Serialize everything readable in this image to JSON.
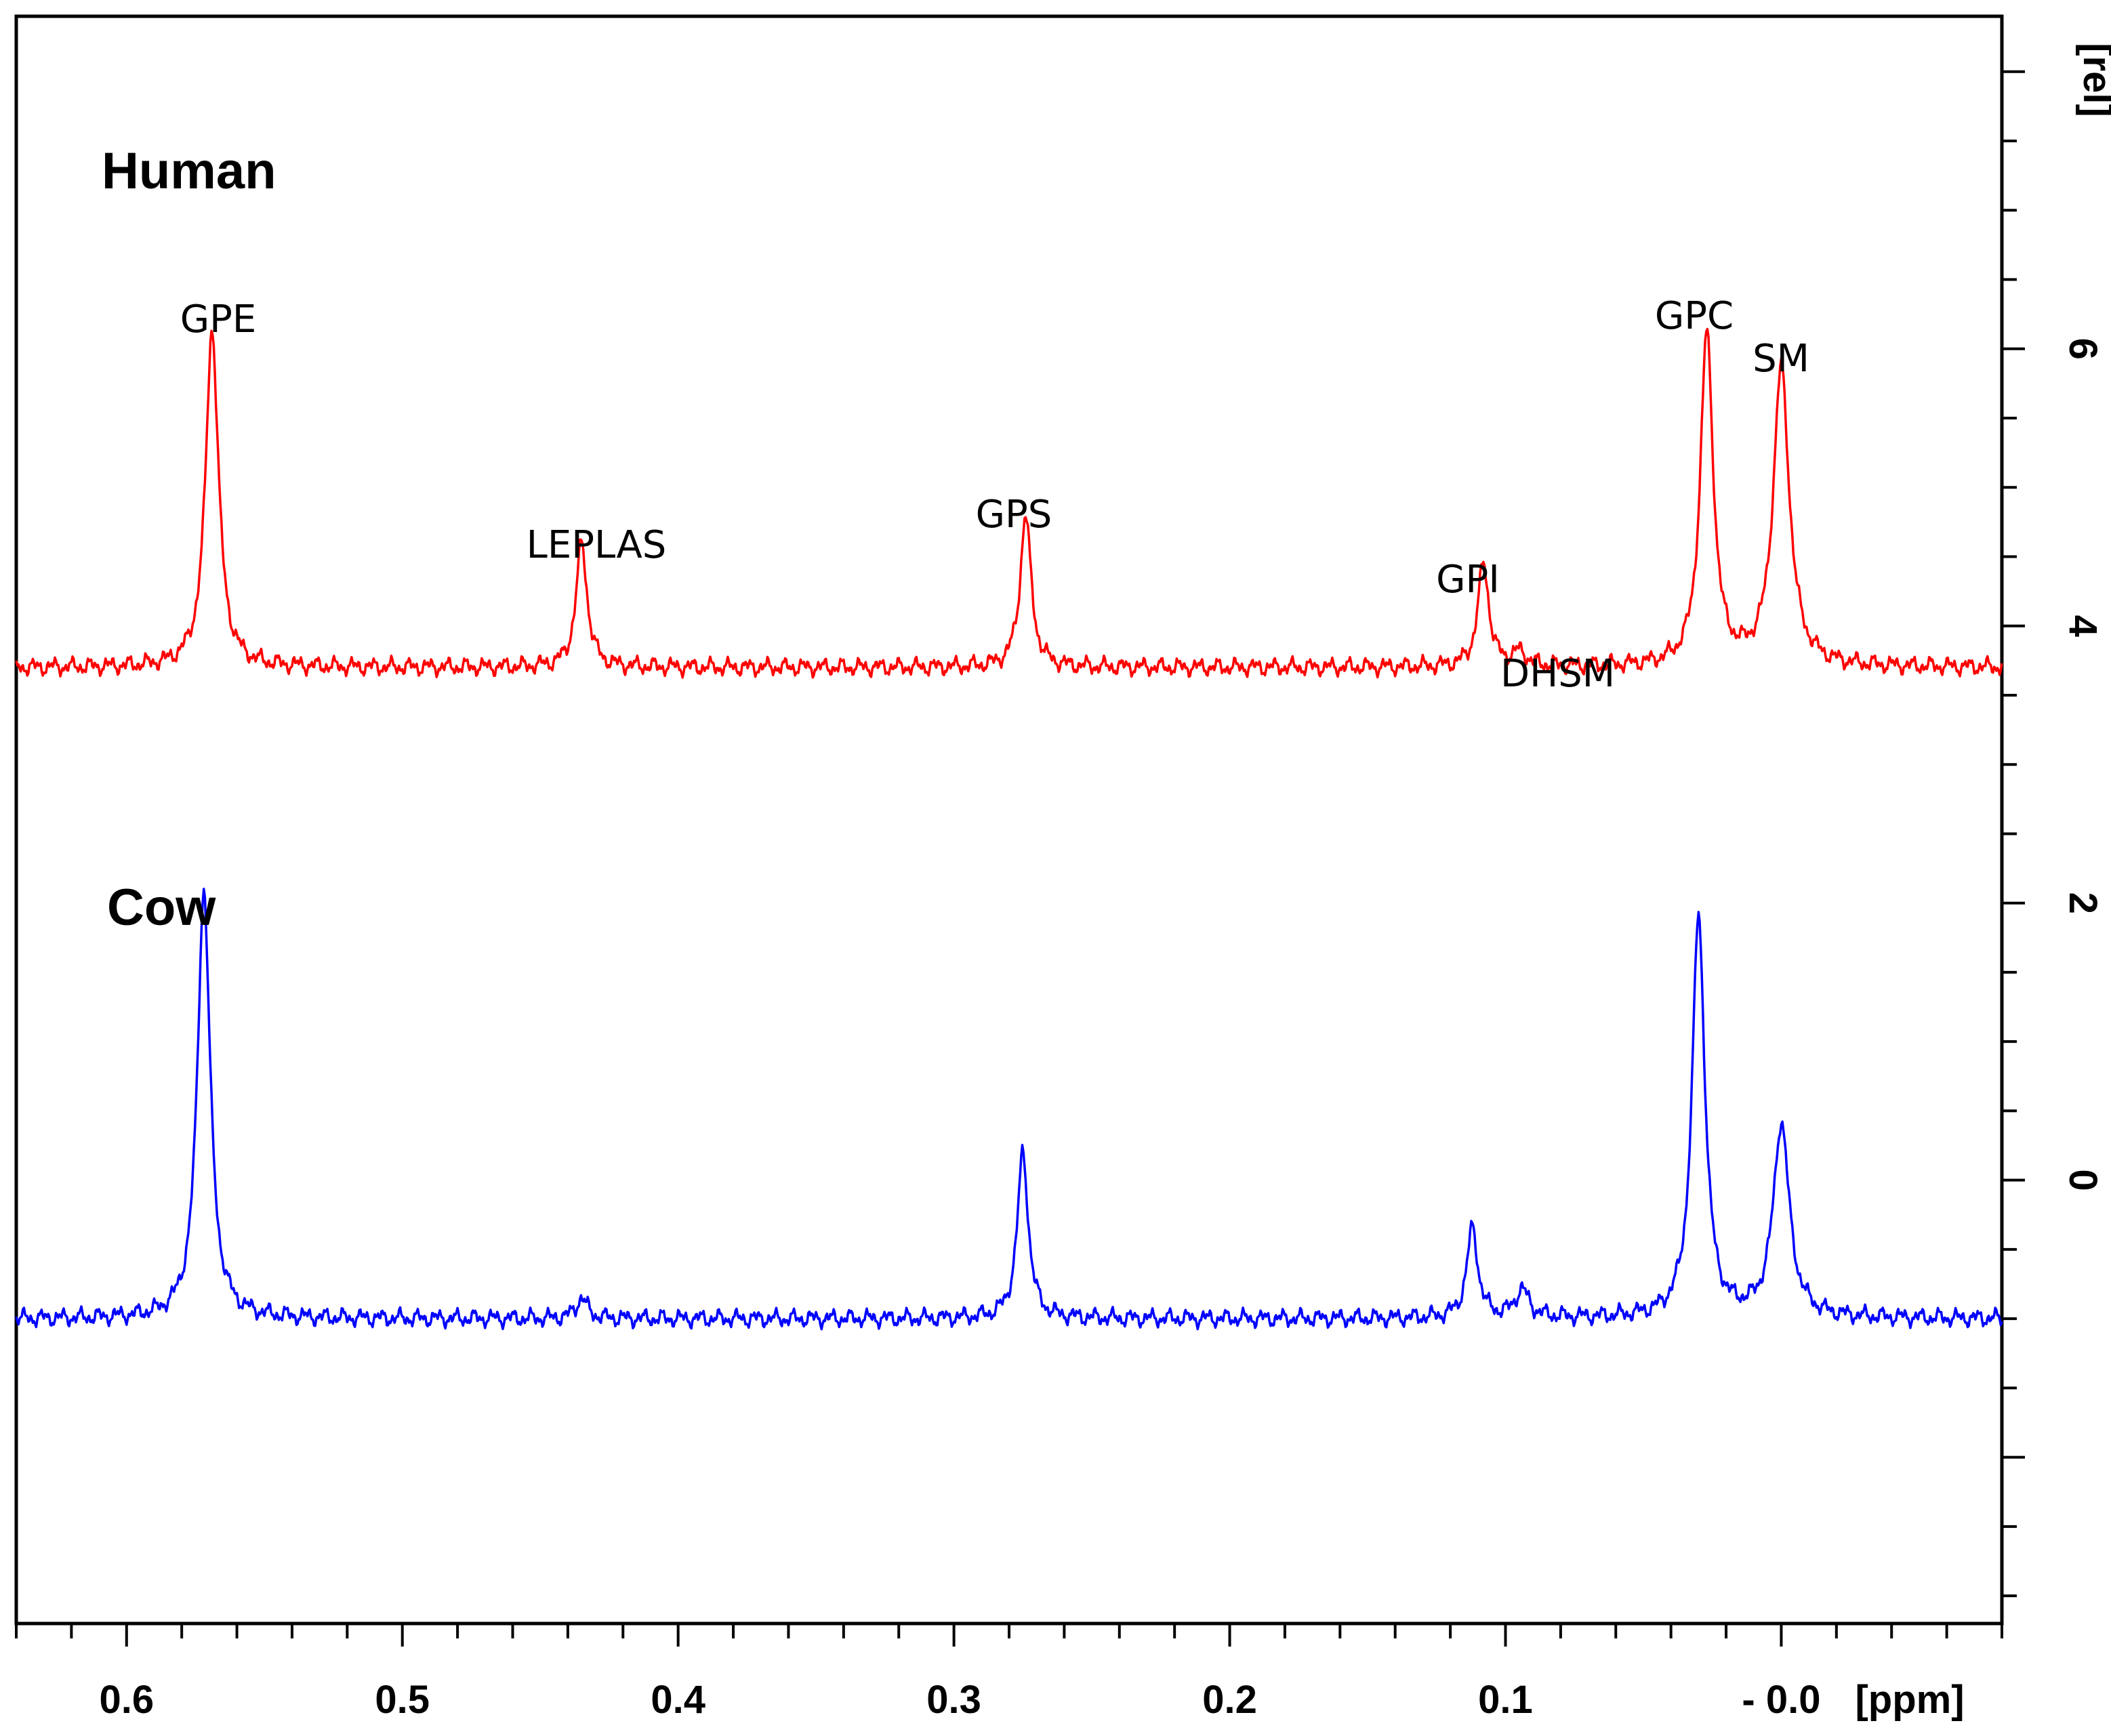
{
  "chart_data": {
    "type": "line",
    "x_label": "[ppm]",
    "y_label": "[rel]",
    "xlim": [
      0.64,
      -0.08
    ],
    "ylim": [
      -3.2,
      8.4
    ],
    "x_ticks": [
      "0.6",
      "0.5",
      "0.4",
      "0.3",
      "0.2",
      "0.1",
      "- 0.0"
    ],
    "x_tick_values": [
      0.6,
      0.5,
      0.4,
      0.3,
      0.2,
      0.1,
      0.0
    ],
    "y_ticks": [
      "0",
      "2",
      "4",
      "6"
    ],
    "y_tick_values": [
      0,
      2,
      4,
      6
    ],
    "grid": false,
    "series": [
      {
        "name": "Human",
        "color": "#ff0000",
        "baseline": 3.7,
        "peaks": [
          {
            "label": "GPE",
            "ppm": 0.569,
            "height": 6.15,
            "width": 0.0028
          },
          {
            "label": "LEPLAS",
            "ppm": 0.435,
            "height": 4.6,
            "width": 0.0024
          },
          {
            "label": "GPS",
            "ppm": 0.274,
            "height": 4.8,
            "width": 0.0024
          },
          {
            "label": "GPI",
            "ppm": 0.108,
            "height": 4.45,
            "width": 0.0024
          },
          {
            "label": "DHSM",
            "ppm": 0.095,
            "height": 3.8,
            "width": 0.003
          },
          {
            "label": "GPC",
            "ppm": 0.027,
            "height": 6.1,
            "width": 0.0028
          },
          {
            "label": "SM",
            "ppm": 0.0,
            "height": 5.85,
            "width": 0.0035
          }
        ]
      },
      {
        "name": "Cow",
        "color": "#0000ff",
        "baseline": -1.0,
        "peaks": [
          {
            "ppm": 0.572,
            "height": 2.1,
            "width": 0.0028
          },
          {
            "ppm": 0.435,
            "height": -0.85,
            "width": 0.0024
          },
          {
            "ppm": 0.275,
            "height": 0.2,
            "width": 0.0024
          },
          {
            "ppm": 0.112,
            "height": -0.35,
            "width": 0.0024
          },
          {
            "ppm": 0.094,
            "height": -0.8,
            "width": 0.003
          },
          {
            "ppm": 0.03,
            "height": 1.9,
            "width": 0.0028
          },
          {
            "ppm": 0.0,
            "height": 0.4,
            "width": 0.0035
          }
        ]
      }
    ]
  },
  "labels": {
    "human": "Human",
    "cow": "Cow",
    "peaks": [
      "GPE",
      "LEPLAS",
      "GPS",
      "GPI",
      "DHSM",
      "GPC",
      "SM"
    ]
  }
}
